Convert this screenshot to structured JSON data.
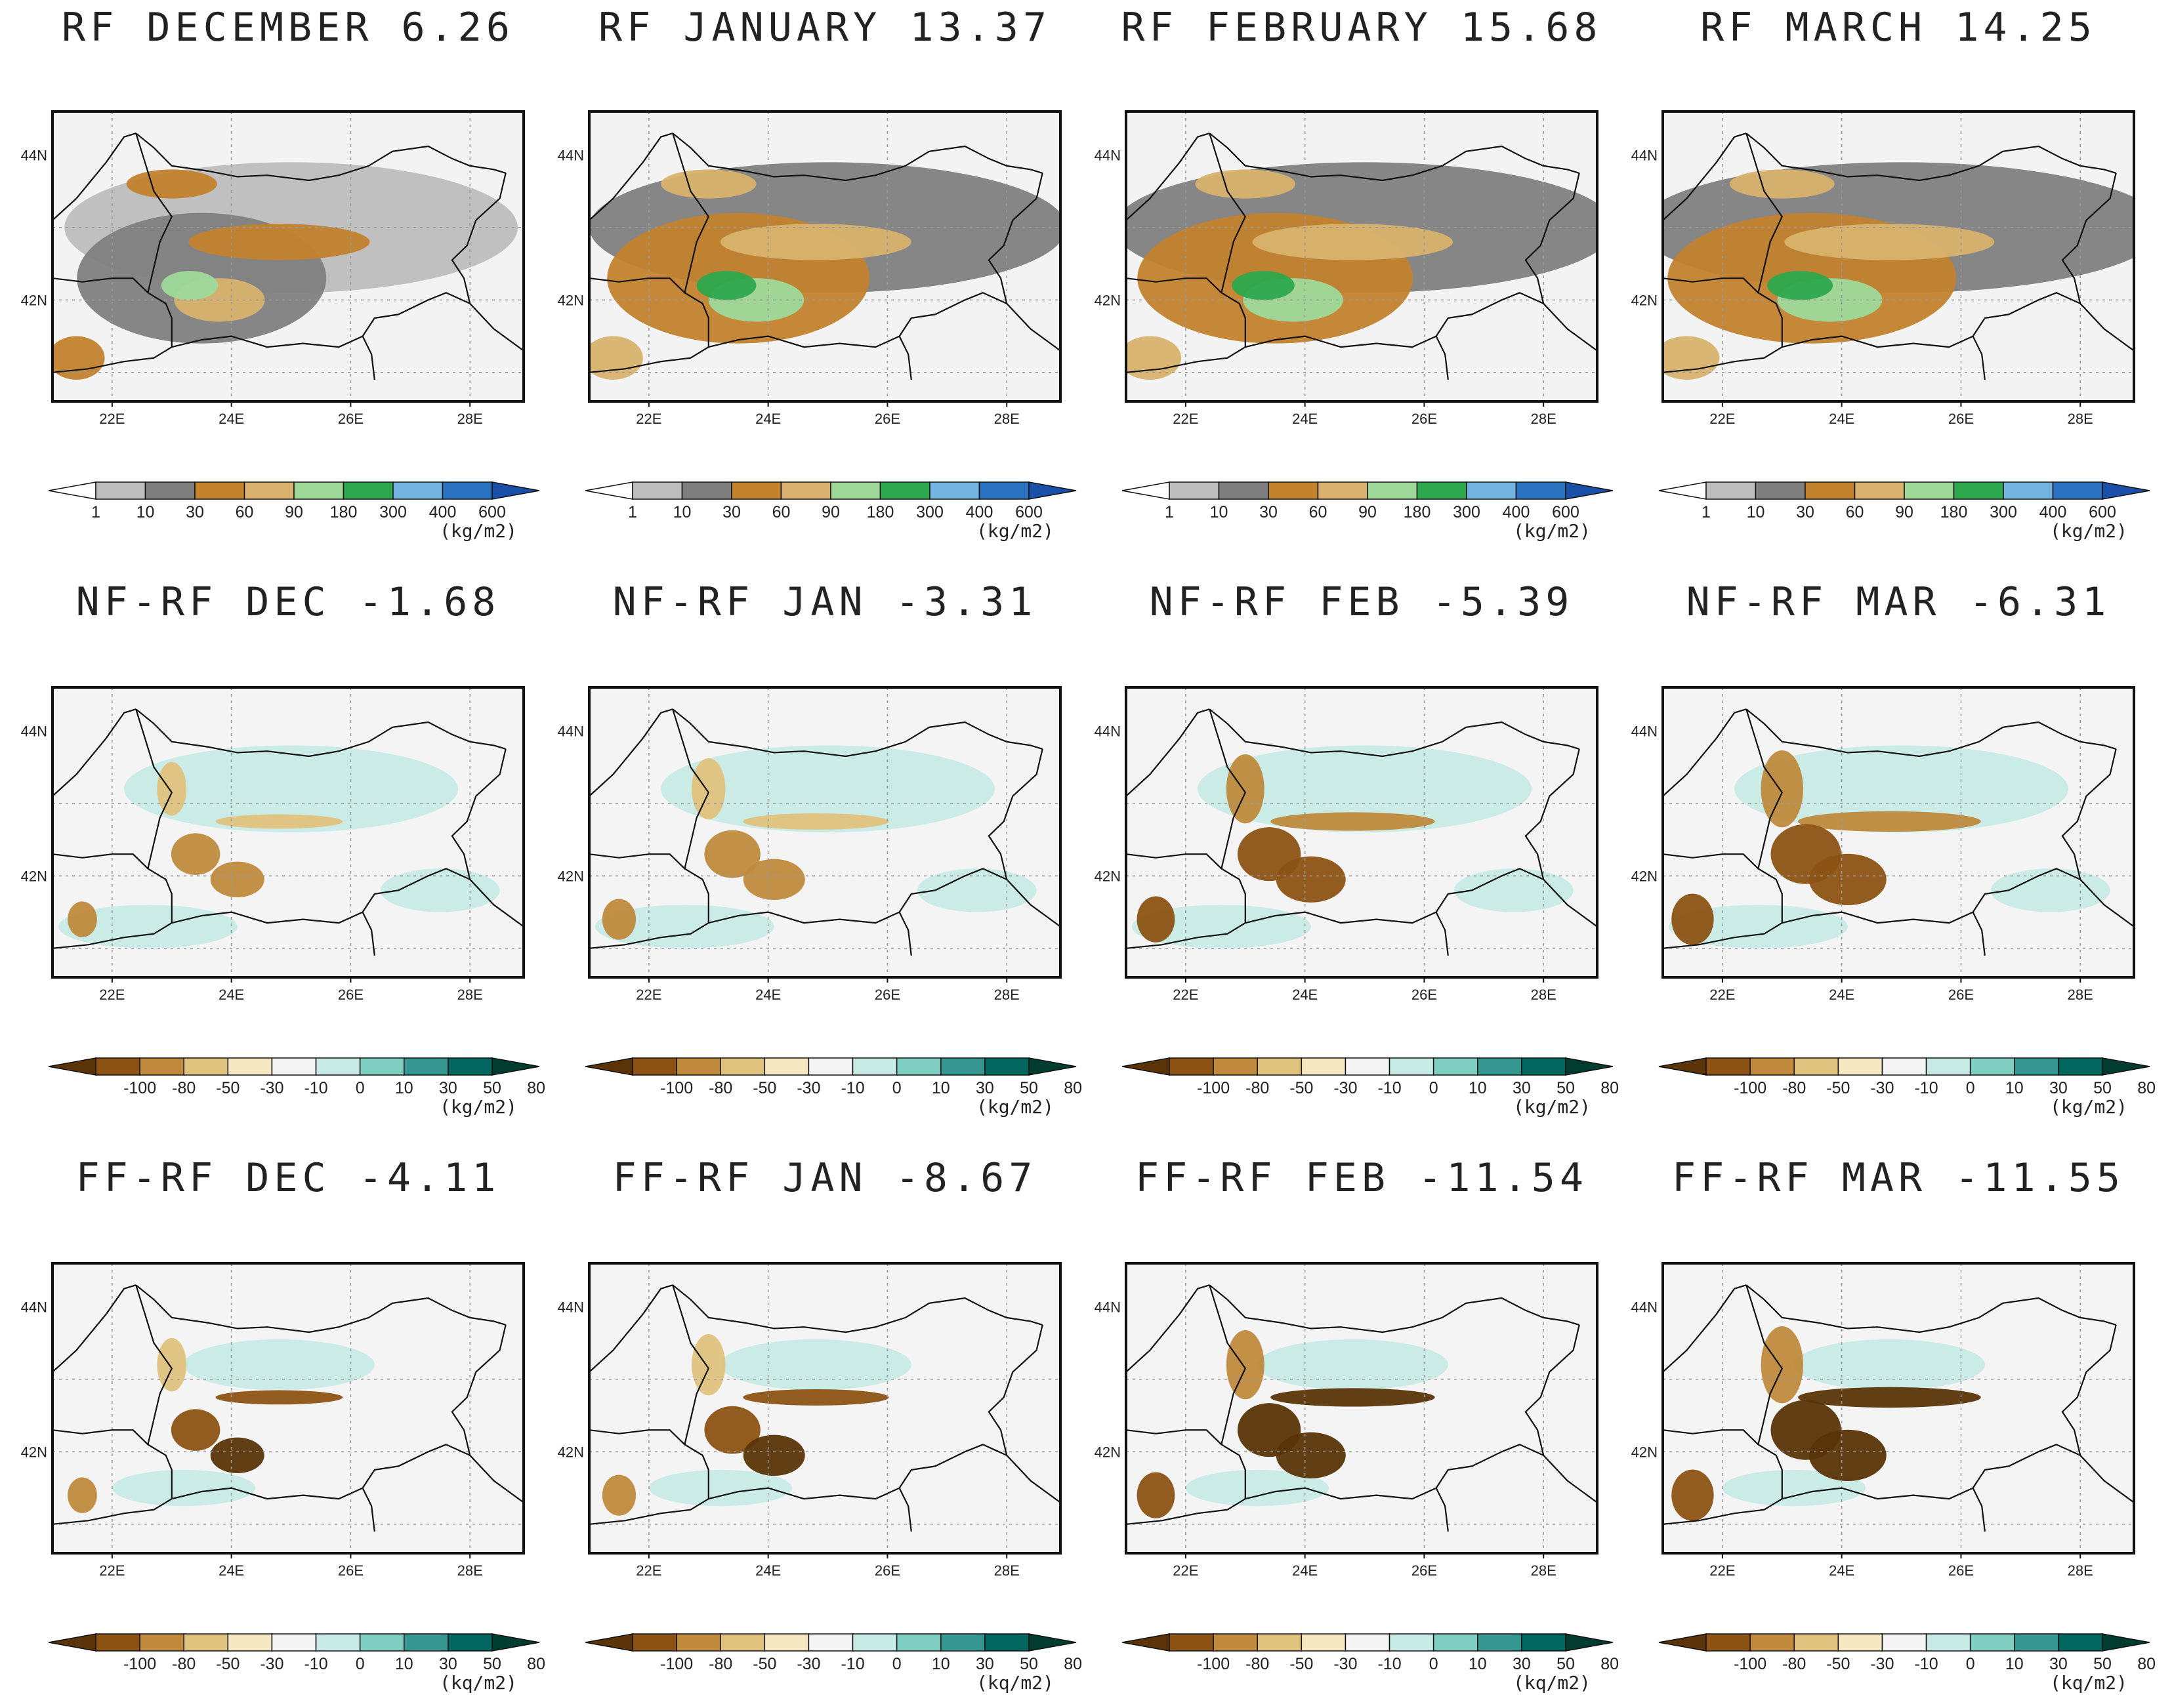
{
  "figure": {
    "rows": [
      {
        "kind": "reference",
        "panels": [
          {
            "title": "RF DECEMBER 6.26"
          },
          {
            "title": "RF JANUARY 13.37"
          },
          {
            "title": "RF FEBRUARY 15.68"
          },
          {
            "title": "RF MARCH 14.25"
          }
        ],
        "colorbar": {
          "levels": [
            "1",
            "10",
            "30",
            "60",
            "90",
            "180",
            "300",
            "400",
            "600"
          ],
          "colors": [
            "#ffffff",
            "#bdbdbd",
            "#7f7f7f",
            "#c2822e",
            "#d8b26e",
            "#9ed99a",
            "#2ea84e",
            "#74b4e0",
            "#2a72c0",
            "#1a4fa8"
          ],
          "unit": "(kg/m2)"
        }
      },
      {
        "kind": "difference",
        "panels": [
          {
            "title": "NF-RF DEC -1.68"
          },
          {
            "title": "NF-RF JAN -3.31"
          },
          {
            "title": "NF-RF FEB -5.39"
          },
          {
            "title": "NF-RF MAR -6.31"
          }
        ],
        "colorbar": {
          "levels": [
            "-100",
            "-80",
            "-50",
            "-30",
            "-10",
            "0",
            "10",
            "30",
            "50",
            "80"
          ],
          "colors": [
            "#5a3408",
            "#8c5314",
            "#bf8a3d",
            "#dfc27d",
            "#f6e8c3",
            "#f4f4f4",
            "#c7eae5",
            "#80cdc1",
            "#35978f",
            "#01665e",
            "#003c30"
          ],
          "unit": "(kg/m2)"
        }
      },
      {
        "kind": "difference",
        "panels": [
          {
            "title": "FF-RF DEC -4.11"
          },
          {
            "title": "FF-RF JAN -8.67"
          },
          {
            "title": "FF-RF FEB -11.54"
          },
          {
            "title": "FF-RF MAR -11.55"
          }
        ],
        "colorbar": {
          "levels": [
            "-100",
            "-80",
            "-50",
            "-30",
            "-10",
            "0",
            "10",
            "30",
            "50",
            "80"
          ],
          "colors": [
            "#5a3408",
            "#8c5314",
            "#bf8a3d",
            "#dfc27d",
            "#f6e8c3",
            "#f4f4f4",
            "#c7eae5",
            "#80cdc1",
            "#35978f",
            "#01665e",
            "#003c30"
          ],
          "unit": "(kq/m2)"
        }
      }
    ],
    "axes": {
      "lon_ticks": [
        "22E",
        "24E",
        "26E",
        "28E"
      ],
      "lat_ticks": [
        "44N",
        "42N"
      ],
      "lon_values": [
        22,
        24,
        26,
        28
      ],
      "lat_values": [
        44,
        42
      ],
      "lon_range": [
        21.0,
        28.9
      ],
      "lat_range": [
        40.6,
        44.6
      ]
    }
  }
}
